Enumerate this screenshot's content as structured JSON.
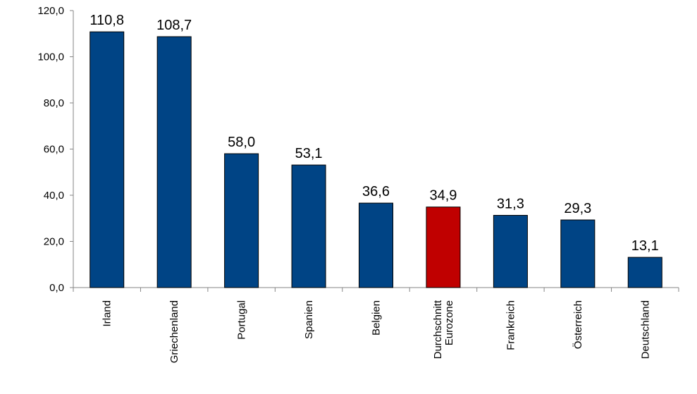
{
  "chart_data": {
    "type": "bar",
    "title": "",
    "xlabel": "",
    "ylabel": "",
    "ylim": [
      0,
      120
    ],
    "yticks": [
      "0,0",
      "20,0",
      "40,0",
      "60,0",
      "80,0",
      "100,0",
      "120,0"
    ],
    "grid": false,
    "legend": "none",
    "categories": [
      [
        "Irland"
      ],
      [
        "Griechenland"
      ],
      [
        "Portugal"
      ],
      [
        "Spanien"
      ],
      [
        "Belgien"
      ],
      [
        "Durchschnitt",
        "Eurozone"
      ],
      [
        "Frankreich"
      ],
      [
        "Österreich"
      ],
      [
        "Deutschland"
      ]
    ],
    "values": [
      110.8,
      108.7,
      58.0,
      53.1,
      36.6,
      34.9,
      31.3,
      29.3,
      13.1
    ],
    "value_labels": [
      "110,8",
      "108,7",
      "58,0",
      "53,1",
      "36,6",
      "34,9",
      "31,3",
      "29,3",
      "13,1"
    ],
    "bar_colors": [
      "#004485",
      "#004485",
      "#004485",
      "#004485",
      "#004485",
      "#c00000",
      "#004485",
      "#004485",
      "#004485"
    ]
  }
}
